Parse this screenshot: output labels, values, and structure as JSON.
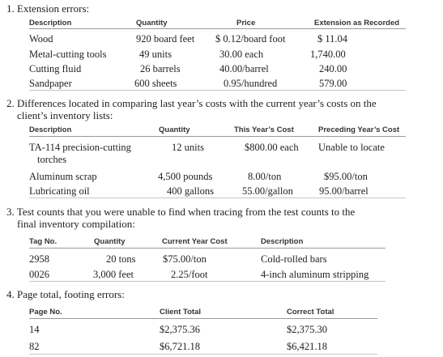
{
  "s1": {
    "title": "1. Extension errors:",
    "headers": [
      "Description",
      "Quantity",
      "Price",
      "Extension as Recorded"
    ],
    "rows": [
      [
        "Wood",
        "920 board feet",
        "$ 0.12/board foot",
        "$ 11.04"
      ],
      [
        "Metal-cutting tools",
        "49 units",
        "30.00 each",
        "1,740.00"
      ],
      [
        "Cutting fluid",
        "26 barrels",
        "40.00/barrel",
        "240.00"
      ],
      [
        "Sandpaper",
        "600 sheets",
        "0.95/hundred",
        "579.00"
      ]
    ]
  },
  "s2": {
    "title_line1": "2. Differences located in comparing last year’s costs with the current year’s costs on the",
    "title_line2": "client’s inventory lists:",
    "headers": [
      "Description",
      "Quantity",
      "This Year’s Cost",
      "Preceding Year’s Cost"
    ],
    "row1": {
      "description_line1": "TA-114 precision-cutting",
      "description_line2": "torches",
      "quantity": "12 units",
      "this_year": "$800.00 each",
      "preceding": "Unable to locate"
    },
    "rows": [
      [
        "Aluminum scrap",
        "4,500 pounds",
        "8.00/ton",
        "$95.00/ton"
      ],
      [
        "Lubricating oil",
        "400 gallons",
        "55.00/gallon",
        "95.00/barrel"
      ]
    ]
  },
  "s3": {
    "title_line1": "3. Test counts that you were unable to find when tracing from the test counts to the",
    "title_line2": "final inventory compilation:",
    "headers": [
      "Tag No.",
      "Quantity",
      "Current Year Cost",
      "Description"
    ],
    "rows": [
      [
        "2958",
        "20 tons",
        "$75.00/ton",
        "Cold-rolled bars"
      ],
      [
        "0026",
        "3,000 feet",
        "2.25/foot",
        "4-inch aluminum stripping"
      ]
    ]
  },
  "s4": {
    "title": "4. Page total, footing errors:",
    "headers": [
      "Page No.",
      "Client Total",
      "Correct Total"
    ],
    "rows": [
      [
        "14",
        "$2,375.36",
        "$2,375.30"
      ],
      [
        "82",
        "$6,721.18",
        "$6,421.18"
      ]
    ]
  }
}
